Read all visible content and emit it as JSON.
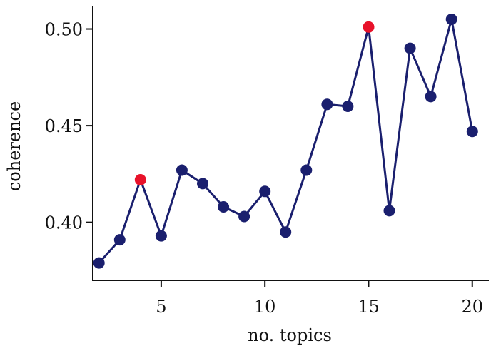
{
  "chart_data": {
    "type": "line",
    "title": "",
    "xlabel": "no. topics",
    "ylabel": "coherence",
    "x": [
      2,
      3,
      4,
      5,
      6,
      7,
      8,
      9,
      10,
      11,
      12,
      13,
      14,
      15,
      16,
      17,
      18,
      19,
      20
    ],
    "series": [
      {
        "values": [
          0.379,
          0.391,
          0.422,
          0.393,
          0.427,
          0.42,
          0.408,
          0.403,
          0.416,
          0.395,
          0.427,
          0.461,
          0.46,
          0.501,
          0.406,
          0.49,
          0.465,
          0.505,
          0.447
        ],
        "color": "#1a1f6e"
      }
    ],
    "highlighted_points": [
      {
        "x": 4,
        "y": 0.422
      },
      {
        "x": 15,
        "y": 0.501
      }
    ],
    "highlight_color": "#e8122a",
    "marker_color": "#1a1f6e",
    "xticks": [
      "5",
      "10",
      "15",
      "20"
    ],
    "yticks": [
      "0.40",
      "0.45",
      "0.50"
    ],
    "xlim": [
      1.7,
      20.8
    ],
    "ylim": [
      0.37,
      0.512
    ],
    "grid": false,
    "legend": "none"
  }
}
